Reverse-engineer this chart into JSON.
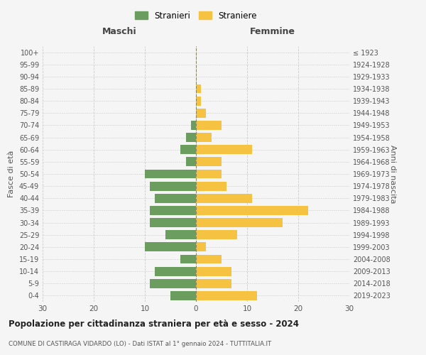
{
  "age_groups": [
    "0-4",
    "5-9",
    "10-14",
    "15-19",
    "20-24",
    "25-29",
    "30-34",
    "35-39",
    "40-44",
    "45-49",
    "50-54",
    "55-59",
    "60-64",
    "65-69",
    "70-74",
    "75-79",
    "80-84",
    "85-89",
    "90-94",
    "95-99",
    "100+"
  ],
  "birth_years": [
    "2019-2023",
    "2014-2018",
    "2009-2013",
    "2004-2008",
    "1999-2003",
    "1994-1998",
    "1989-1993",
    "1984-1988",
    "1979-1983",
    "1974-1978",
    "1969-1973",
    "1964-1968",
    "1959-1963",
    "1954-1958",
    "1949-1953",
    "1944-1948",
    "1939-1943",
    "1934-1938",
    "1929-1933",
    "1924-1928",
    "≤ 1923"
  ],
  "males": [
    5,
    9,
    8,
    3,
    10,
    6,
    9,
    9,
    8,
    9,
    10,
    2,
    3,
    2,
    1,
    0,
    0,
    0,
    0,
    0,
    0
  ],
  "females": [
    12,
    7,
    7,
    5,
    2,
    8,
    17,
    22,
    11,
    6,
    5,
    5,
    11,
    3,
    5,
    2,
    1,
    1,
    0,
    0,
    0
  ],
  "male_color": "#6b9e5e",
  "female_color": "#f5c242",
  "background_color": "#f5f5f5",
  "grid_color": "#cccccc",
  "title": "Popolazione per cittadinanza straniera per età e sesso - 2024",
  "subtitle": "COMUNE DI CASTIRAGA VIDARDO (LO) - Dati ISTAT al 1° gennaio 2024 - TUTTITALIA.IT",
  "xlabel_left": "Maschi",
  "xlabel_right": "Femmine",
  "ylabel_left": "Fasce di età",
  "ylabel_right": "Anni di nascita",
  "legend_male": "Stranieri",
  "legend_female": "Straniere",
  "xlim": 30,
  "bar_height": 0.75
}
